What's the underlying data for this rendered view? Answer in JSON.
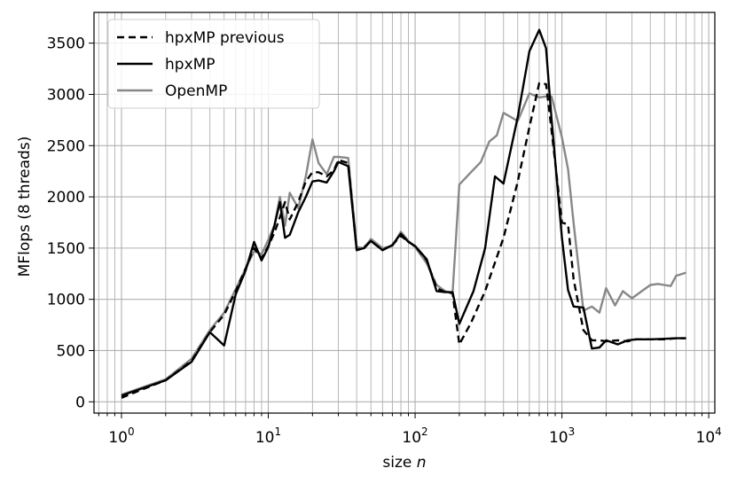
{
  "chart_data": {
    "type": "line",
    "title": "",
    "xlabel": "size ",
    "xlabel_var": "n",
    "ylabel": "MFlops (8 threads)",
    "xscale": "log",
    "xlim": [
      0.65,
      11000
    ],
    "ylim": [
      -110,
      3800
    ],
    "grid": true,
    "grid_minor_x": true,
    "legend_position": "upper-left",
    "x_ticks": [
      {
        "value": 1,
        "base": "10",
        "exp": "0"
      },
      {
        "value": 10,
        "base": "10",
        "exp": "1"
      },
      {
        "value": 100,
        "base": "10",
        "exp": "2"
      },
      {
        "value": 1000,
        "base": "10",
        "exp": "3"
      },
      {
        "value": 10000,
        "base": "10",
        "exp": "4"
      }
    ],
    "y_ticks": [
      "0",
      "500",
      "1000",
      "1500",
      "2000",
      "2500",
      "3000",
      "3500"
    ],
    "series": [
      {
        "name": "hpxMP previous",
        "color": "#000000",
        "dash": "8,5",
        "points": [
          [
            1,
            40
          ],
          [
            1.5,
            140
          ],
          [
            2,
            210
          ],
          [
            3,
            400
          ],
          [
            4,
            680
          ],
          [
            5,
            850
          ],
          [
            6,
            1080
          ],
          [
            7,
            1300
          ],
          [
            8,
            1500
          ],
          [
            9,
            1400
          ],
          [
            10,
            1520
          ],
          [
            11,
            1650
          ],
          [
            12,
            1800
          ],
          [
            13,
            1950
          ],
          [
            14,
            1780
          ],
          [
            16,
            1950
          ],
          [
            18,
            2150
          ],
          [
            20,
            2240
          ],
          [
            22,
            2240
          ],
          [
            25,
            2200
          ],
          [
            28,
            2260
          ],
          [
            30,
            2360
          ],
          [
            35,
            2330
          ],
          [
            40,
            1480
          ],
          [
            45,
            1510
          ],
          [
            50,
            1570
          ],
          [
            60,
            1480
          ],
          [
            70,
            1530
          ],
          [
            80,
            1620
          ],
          [
            90,
            1560
          ],
          [
            100,
            1520
          ],
          [
            120,
            1380
          ],
          [
            140,
            1110
          ],
          [
            160,
            1070
          ],
          [
            180,
            1060
          ],
          [
            200,
            560
          ],
          [
            240,
            770
          ],
          [
            300,
            1080
          ],
          [
            400,
            1600
          ],
          [
            500,
            2150
          ],
          [
            600,
            2680
          ],
          [
            700,
            3110
          ],
          [
            780,
            3100
          ],
          [
            850,
            2650
          ],
          [
            1000,
            1750
          ],
          [
            1100,
            1730
          ],
          [
            1200,
            1200
          ],
          [
            1400,
            700
          ],
          [
            1600,
            600
          ],
          [
            1800,
            600
          ],
          [
            2000,
            590
          ],
          [
            2400,
            600
          ],
          [
            2800,
            590
          ],
          [
            3200,
            610
          ],
          [
            4000,
            610
          ],
          [
            5000,
            610
          ],
          [
            6000,
            620
          ],
          [
            7000,
            620
          ]
        ]
      },
      {
        "name": "hpxMP",
        "color": "#000000",
        "dash": "",
        "points": [
          [
            1,
            60
          ],
          [
            2,
            210
          ],
          [
            3,
            390
          ],
          [
            4,
            680
          ],
          [
            5,
            550
          ],
          [
            6,
            1050
          ],
          [
            7,
            1280
          ],
          [
            8,
            1560
          ],
          [
            9,
            1380
          ],
          [
            10,
            1510
          ],
          [
            11,
            1720
          ],
          [
            12,
            1950
          ],
          [
            13,
            1600
          ],
          [
            14,
            1630
          ],
          [
            16,
            1850
          ],
          [
            18,
            2000
          ],
          [
            20,
            2150
          ],
          [
            22,
            2160
          ],
          [
            25,
            2140
          ],
          [
            28,
            2250
          ],
          [
            30,
            2340
          ],
          [
            35,
            2300
          ],
          [
            40,
            1480
          ],
          [
            45,
            1500
          ],
          [
            50,
            1570
          ],
          [
            60,
            1480
          ],
          [
            70,
            1530
          ],
          [
            80,
            1640
          ],
          [
            90,
            1560
          ],
          [
            100,
            1520
          ],
          [
            120,
            1390
          ],
          [
            140,
            1080
          ],
          [
            160,
            1070
          ],
          [
            180,
            1070
          ],
          [
            200,
            760
          ],
          [
            250,
            1080
          ],
          [
            300,
            1500
          ],
          [
            350,
            2200
          ],
          [
            400,
            2130
          ],
          [
            500,
            2780
          ],
          [
            600,
            3420
          ],
          [
            700,
            3630
          ],
          [
            780,
            3450
          ],
          [
            850,
            2760
          ],
          [
            1000,
            1600
          ],
          [
            1100,
            1090
          ],
          [
            1200,
            930
          ],
          [
            1400,
            920
          ],
          [
            1600,
            520
          ],
          [
            1800,
            530
          ],
          [
            2000,
            600
          ],
          [
            2400,
            560
          ],
          [
            2800,
            600
          ],
          [
            3200,
            610
          ],
          [
            4000,
            610
          ],
          [
            5000,
            615
          ],
          [
            6000,
            620
          ],
          [
            7000,
            620
          ]
        ]
      },
      {
        "name": "OpenMP",
        "color": "#888888",
        "dash": "",
        "points": [
          [
            1,
            70
          ],
          [
            2,
            220
          ],
          [
            3,
            420
          ],
          [
            4,
            700
          ],
          [
            5,
            870
          ],
          [
            6,
            1100
          ],
          [
            7,
            1300
          ],
          [
            8,
            1470
          ],
          [
            9,
            1440
          ],
          [
            10,
            1580
          ],
          [
            11,
            1720
          ],
          [
            12,
            2000
          ],
          [
            13,
            1720
          ],
          [
            14,
            2040
          ],
          [
            16,
            1890
          ],
          [
            18,
            2200
          ],
          [
            20,
            2560
          ],
          [
            22,
            2330
          ],
          [
            25,
            2220
          ],
          [
            28,
            2390
          ],
          [
            30,
            2390
          ],
          [
            35,
            2380
          ],
          [
            40,
            1510
          ],
          [
            45,
            1500
          ],
          [
            50,
            1590
          ],
          [
            60,
            1500
          ],
          [
            70,
            1520
          ],
          [
            80,
            1660
          ],
          [
            90,
            1570
          ],
          [
            100,
            1510
          ],
          [
            120,
            1350
          ],
          [
            140,
            1140
          ],
          [
            160,
            1080
          ],
          [
            180,
            1060
          ],
          [
            200,
            2120
          ],
          [
            240,
            2240
          ],
          [
            280,
            2340
          ],
          [
            320,
            2540
          ],
          [
            360,
            2600
          ],
          [
            400,
            2820
          ],
          [
            500,
            2740
          ],
          [
            600,
            3010
          ],
          [
            700,
            2970
          ],
          [
            780,
            2980
          ],
          [
            850,
            2980
          ],
          [
            1000,
            2580
          ],
          [
            1100,
            2270
          ],
          [
            1200,
            1750
          ],
          [
            1400,
            890
          ],
          [
            1600,
            930
          ],
          [
            1800,
            870
          ],
          [
            2000,
            1110
          ],
          [
            2300,
            940
          ],
          [
            2600,
            1080
          ],
          [
            3000,
            1010
          ],
          [
            3500,
            1080
          ],
          [
            4000,
            1140
          ],
          [
            4500,
            1150
          ],
          [
            5000,
            1140
          ],
          [
            5500,
            1130
          ],
          [
            6000,
            1230
          ],
          [
            7000,
            1260
          ]
        ]
      }
    ]
  }
}
